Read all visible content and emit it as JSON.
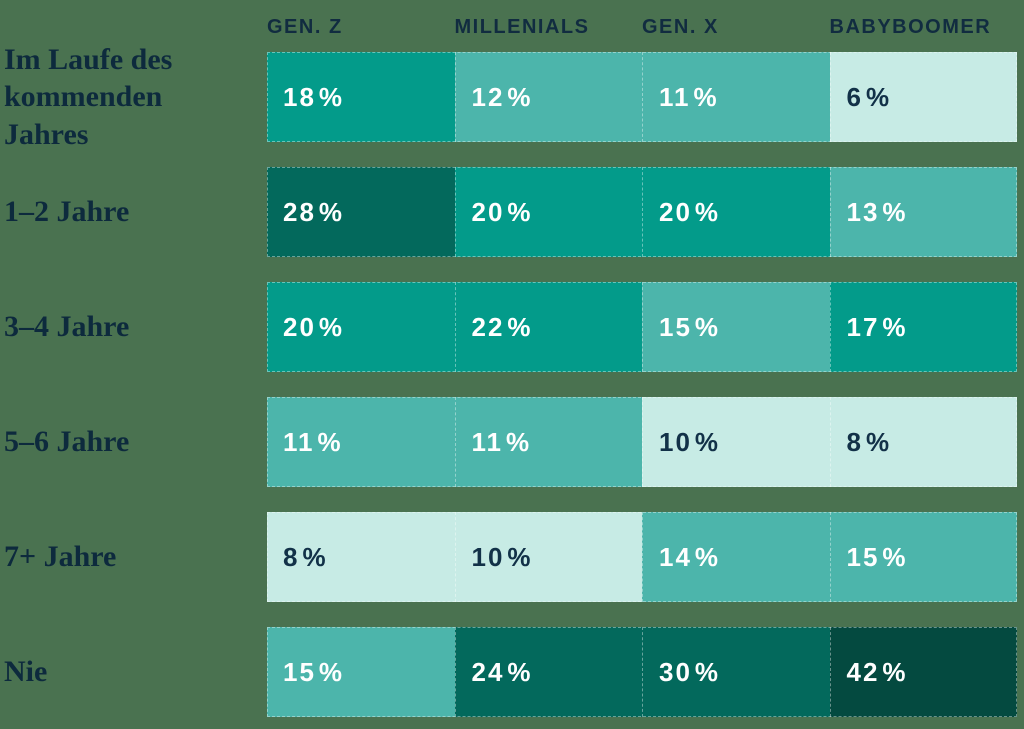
{
  "page": {
    "background_color": "#4a7250",
    "heading_text_color": "#112c40",
    "label_text_color": "#0d2a3d"
  },
  "chart_data": {
    "type": "heatmap",
    "columns": [
      "GEN. Z",
      "MILLENIALS",
      "GEN. X",
      "BABYBOOMER"
    ],
    "rows": [
      {
        "label": "Im Laufe des kommenden Jahres",
        "values": [
          18,
          12,
          11,
          6
        ]
      },
      {
        "label": "1–2 Jahre",
        "values": [
          28,
          20,
          20,
          13
        ]
      },
      {
        "label": "3–4 Jahre",
        "values": [
          20,
          22,
          15,
          17
        ]
      },
      {
        "label": "5–6 Jahre",
        "values": [
          11,
          11,
          10,
          8
        ]
      },
      {
        "label": "7+ Jahre",
        "values": [
          8,
          10,
          14,
          15
        ]
      },
      {
        "label": "Nie",
        "values": [
          15,
          24,
          30,
          42
        ]
      }
    ],
    "value_suffix": "%",
    "layout": {
      "legend": "none",
      "grid": "off",
      "value_position": "inside-left",
      "column_header_position": "top"
    },
    "color_scale": [
      {
        "max": 10,
        "bg": "#c7ebe5",
        "text": "#123148"
      },
      {
        "max": 16,
        "bg": "#4cb5ab",
        "text": "#ffffff"
      },
      {
        "max": 23,
        "bg": "#039b8a",
        "text": "#ffffff"
      },
      {
        "max": 35,
        "bg": "#03695c",
        "text": "#ffffff"
      },
      {
        "max": 100,
        "bg": "#044a40",
        "text": "#ffffff"
      }
    ]
  }
}
